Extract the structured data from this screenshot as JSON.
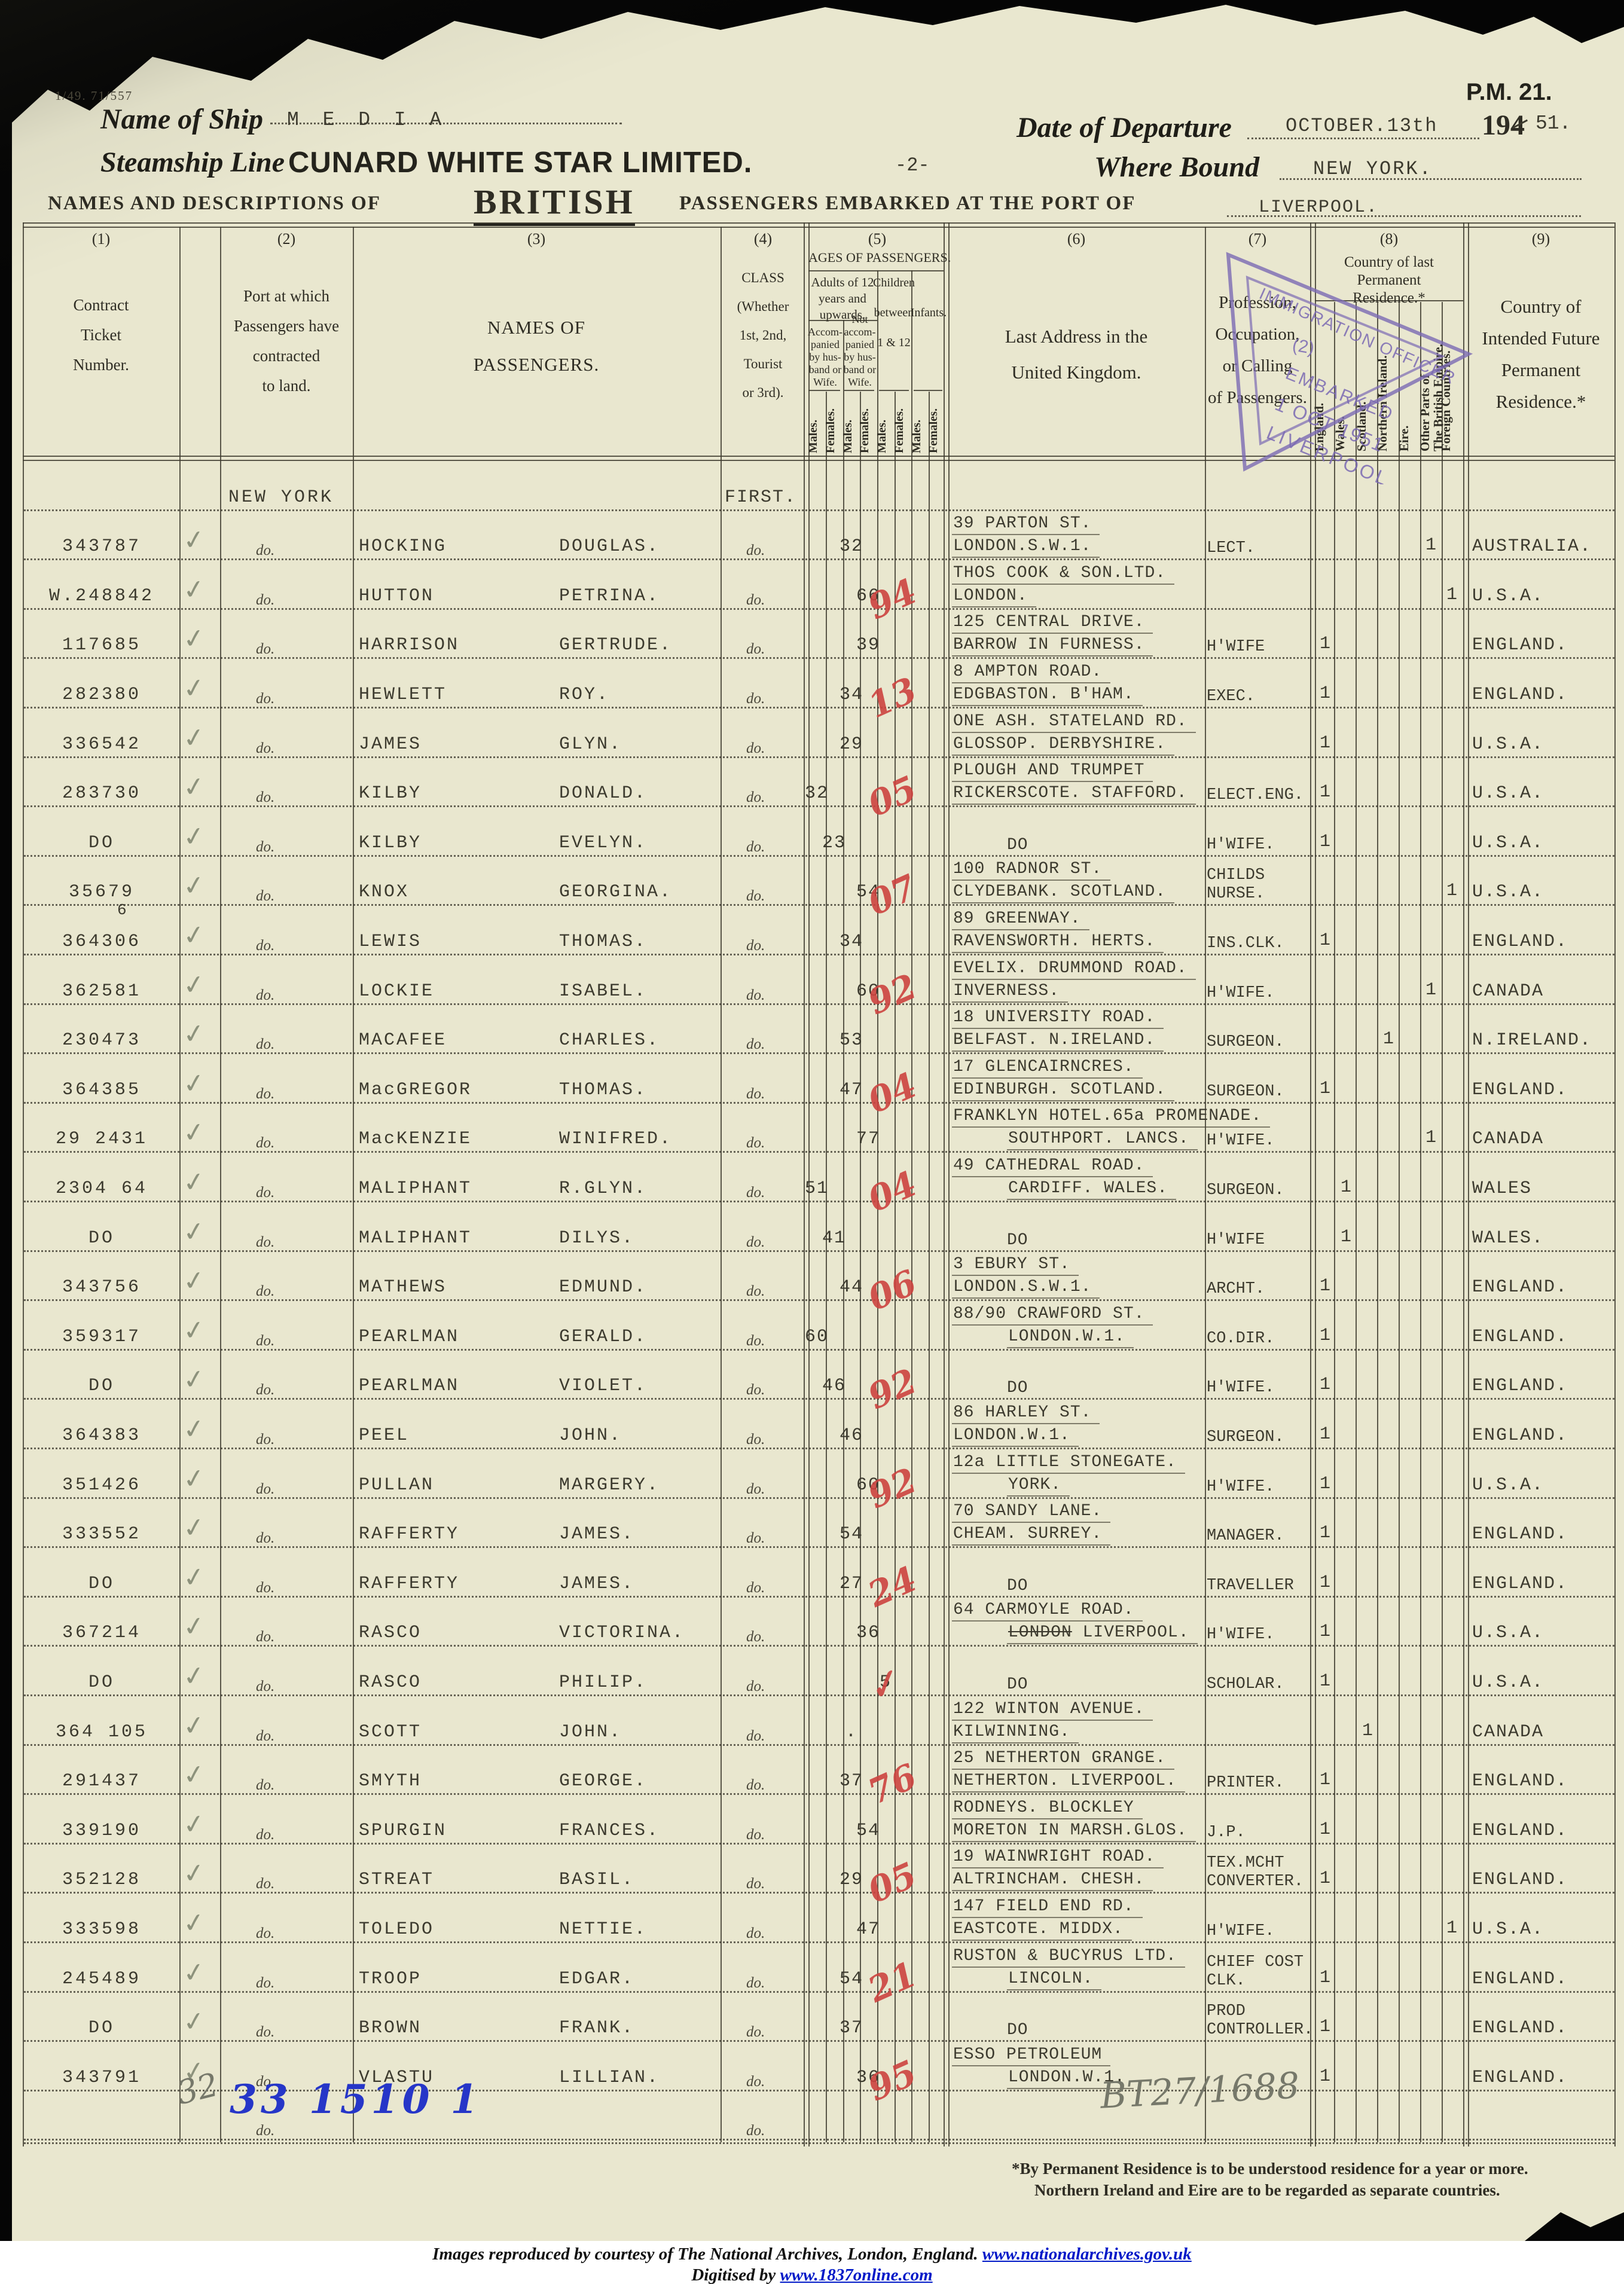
{
  "header": {
    "form_ref": "1/49. 71/557",
    "pm_ref": "P.M. 21.",
    "name_of_ship_label": "Name of Ship",
    "ship_name": "M E D I A",
    "date_label": "Date of Departure",
    "date_value": "OCTOBER.13th",
    "year_printed": "194",
    "year_typed": "51.",
    "steamship_label": "Steamship Line",
    "steamship_value": "CUNARD WHITE STAR LIMITED.",
    "page_number": "-2-",
    "where_bound_label": "Where Bound",
    "where_bound_value": "NEW YORK.",
    "title_prefix": "NAMES AND DESCRIPTIONS OF",
    "title_nationality": "BRITISH",
    "title_suffix": "PASSENGERS EMBARKED AT THE PORT OF",
    "port_value": "LIVERPOOL."
  },
  "stamp": {
    "line1": "IMMIGRATION OFFICER",
    "line2": "(2)",
    "line3": "EMBARKED",
    "line4": "1 OCT 1951",
    "line5": "LIVERPOOL"
  },
  "columns": {
    "c1": {
      "num": "(1)",
      "lines": [
        "Contract",
        "Ticket",
        "Number."
      ]
    },
    "c2": {
      "num": "(2)",
      "lines": [
        "Port at which",
        "Passengers have",
        "contracted",
        "to land."
      ]
    },
    "c3": {
      "num": "(3)",
      "lines": [
        "NAMES OF",
        "PASSENGERS."
      ]
    },
    "c4": {
      "num": "(4)",
      "lines": [
        "CLASS",
        "(Whether",
        "1st, 2nd,",
        "Tourist",
        "or 3rd)."
      ]
    },
    "c5": {
      "num": "(5)",
      "title": "AGES OF PASSENGERS.",
      "adults": [
        "Adults of 12",
        "years and",
        "upwards."
      ],
      "accompanied": [
        "Accom-",
        "panied",
        "by hus-",
        "band or",
        "Wife."
      ],
      "not_accompanied": [
        "Not",
        "accom-",
        "panied",
        "by hus-",
        "band or",
        "Wife."
      ],
      "children": [
        "Children",
        "between",
        "1 & 12"
      ],
      "infants": "Infants.",
      "males": "Males.",
      "females": "Females."
    },
    "c6": {
      "num": "(6)",
      "lines": [
        "Last Address in the",
        "United Kingdom."
      ]
    },
    "c7": {
      "num": "(7)",
      "lines": [
        "Profession,",
        "Occupation,",
        "or Calling",
        "of Passengers."
      ]
    },
    "c8": {
      "num": "(8)",
      "title": [
        "Country of last",
        "Permanent",
        "Residence.*"
      ],
      "subs": [
        "England.",
        "Wales.",
        "Scotland.",
        "Northern Ireland.",
        "Eire.",
        "Other Parts of|The British Empire.",
        "Foreign Countries."
      ]
    },
    "c9": {
      "num": "(9)",
      "lines": [
        "Country of",
        "Intended Future",
        "Permanent",
        "Residence.*"
      ]
    }
  },
  "rows": [
    {
      "kind": "group",
      "port": "NEW YORK",
      "class_value": "FIRST."
    },
    {
      "ticket": "343787",
      "surname": "HOCKING",
      "forename": "DOUGLAS.",
      "age_col": 2,
      "age": "32",
      "addr1": "39 PARTON ST.",
      "addr2": "LONDON.S.W.1.",
      "prof": [
        "LECT."
      ],
      "res_col": 5,
      "dest": "AUSTRALIA."
    },
    {
      "ticket": "W.248842",
      "surname": "HUTTON",
      "forename": "PETRINA.",
      "age_col": 3,
      "age": "66",
      "red": "94",
      "addr1": "THOS COOK & SON.LTD.",
      "addr2": "LONDON.",
      "prof": [],
      "res_col": 6,
      "dest": "U.S.A."
    },
    {
      "ticket": "117685",
      "surname": "HARRISON",
      "forename": "GERTRUDE.",
      "age_col": 3,
      "age": "39",
      "addr1": "125 CENTRAL DRIVE.",
      "addr2": "BARROW IN FURNESS.",
      "prof": [
        "H'WIFE"
      ],
      "res_col": 0,
      "dest": "ENGLAND."
    },
    {
      "ticket": "282380",
      "surname": "HEWLETT",
      "forename": "ROY.",
      "age_col": 2,
      "age": "34",
      "red": "13",
      "addr1": "8 AMPTON ROAD.",
      "addr2": "EDGBASTON. B'HAM.",
      "prof": [
        "EXEC."
      ],
      "res_col": 0,
      "dest": "ENGLAND."
    },
    {
      "ticket": "336542",
      "surname": "JAMES",
      "forename": "GLYN.",
      "age_col": 2,
      "age": "29",
      "addr1": "ONE ASH. STATELAND RD.",
      "addr2": "GLOSSOP. DERBYSHIRE.",
      "prof": [],
      "res_col": 0,
      "dest": "U.S.A."
    },
    {
      "ticket": "283730",
      "surname": "KILBY",
      "forename": "DONALD.",
      "age_col": 0,
      "age": "32",
      "red": "05",
      "addr1": "PLOUGH AND TRUMPET",
      "addr2": "RICKERSCOTE. STAFFORD.",
      "prof": [
        "ELECT.ENG."
      ],
      "res_col": 0,
      "dest": "U.S.A."
    },
    {
      "ticket": "DO",
      "surname": "KILBY",
      "forename": "EVELYN.",
      "age_col": 1,
      "age": "23",
      "addr2": "DO",
      "addr2_indent": true,
      "prof": [
        "H'WIFE."
      ],
      "res_col": 0,
      "dest": "U.S.A."
    },
    {
      "ticket": "35679",
      "ticket_sub": "6",
      "surname": "KNOX",
      "forename": "GEORGINA.",
      "age_col": 3,
      "age": "54",
      "red": "07",
      "addr1": "100 RADNOR ST.",
      "addr2": "CLYDEBANK. SCOTLAND.",
      "prof": [
        "CHILDS",
        "NURSE."
      ],
      "res_col": 6,
      "dest": "U.S.A."
    },
    {
      "ticket": "364306",
      "surname": "LEWIS",
      "forename": "THOMAS.",
      "age_col": 2,
      "age": "34",
      "addr1": "89 GREENWAY.",
      "addr2": "RAVENSWORTH. HERTS.",
      "prof": [
        "INS.CLK."
      ],
      "res_col": 0,
      "dest": "ENGLAND."
    },
    {
      "ticket": "362581",
      "surname": "LOCKIE",
      "forename": "ISABEL.",
      "age_col": 3,
      "age": "60",
      "red": "92",
      "addr1": "EVELIX. DRUMMOND ROAD.",
      "addr2": "INVERNESS.",
      "prof": [
        "H'WIFE."
      ],
      "res_col": 5,
      "dest": "CANADA"
    },
    {
      "ticket": "230473",
      "surname": "MACAFEE",
      "forename": "CHARLES.",
      "age_col": 2,
      "age": "53",
      "addr1": "18 UNIVERSITY ROAD.",
      "addr2": "BELFAST. N.IRELAND.",
      "prof": [
        "SURGEON."
      ],
      "res_col": 3,
      "dest": "N.IRELAND."
    },
    {
      "ticket": "364385",
      "surname": "MacGREGOR",
      "forename": "THOMAS.",
      "age_col": 2,
      "age": "47",
      "red": "04",
      "addr1": "17 GLENCAIRNCRES.",
      "addr2": "EDINBURGH. SCOTLAND.",
      "prof": [
        "SURGEON."
      ],
      "res_col": 0,
      "dest": "ENGLAND."
    },
    {
      "ticket": "29 2431",
      "surname": "MacKENZIE",
      "forename": "WINIFRED.",
      "age_col": 3,
      "age": "77",
      "addr1": "FRANKLYN HOTEL.65a PROMENADE.",
      "addr2": "SOUTHPORT. LANCS.",
      "addr2_indent": true,
      "prof": [
        "H'WIFE."
      ],
      "res_col": 5,
      "dest": "CANADA"
    },
    {
      "ticket": "2304 64",
      "surname": "MALIPHANT",
      "forename": "R.GLYN.",
      "age_col": 0,
      "age": "51",
      "red": "04",
      "addr1": "49 CATHEDRAL ROAD.",
      "addr2": "CARDIFF. WALES.",
      "addr2_indent": true,
      "prof": [
        "SURGEON."
      ],
      "res_col": 1,
      "dest": "WALES"
    },
    {
      "ticket": "DO",
      "surname": "MALIPHANT",
      "forename": "DILYS.",
      "age_col": 1,
      "age": "41",
      "addr2": "DO",
      "addr2_indent": true,
      "prof": [
        "H'WIFE"
      ],
      "res_col": 1,
      "dest": "WALES."
    },
    {
      "ticket": "343756",
      "surname": "MATHEWS",
      "forename": "EDMUND.",
      "age_col": 2,
      "age": "44",
      "red": "06",
      "addr1": "3 EBURY ST.",
      "addr2": "LONDON.S.W.1.",
      "prof": [
        "ARCHT."
      ],
      "res_col": 0,
      "dest": "ENGLAND."
    },
    {
      "ticket": "359317",
      "surname": "PEARLMAN",
      "forename": "GERALD.",
      "age_col": 0,
      "age": "60",
      "addr1": "88/90 CRAWFORD ST.",
      "addr2": "LONDON.W.1.",
      "addr2_indent": true,
      "prof": [
        "CO.DIR."
      ],
      "res_col": 0,
      "dest": "ENGLAND."
    },
    {
      "ticket": "DO",
      "surname": "PEARLMAN",
      "forename": "VIOLET.",
      "age_col": 1,
      "age": "46",
      "red": "92",
      "addr2": "DO",
      "addr2_indent": true,
      "prof": [
        "H'WIFE."
      ],
      "res_col": 0,
      "dest": "ENGLAND."
    },
    {
      "ticket": "364383",
      "surname": "PEEL",
      "forename": "JOHN.",
      "age_col": 2,
      "age": "46",
      "addr1": "86 HARLEY ST.",
      "addr2": "LONDON.W.1.",
      "prof": [
        "SURGEON."
      ],
      "res_col": 0,
      "dest": "ENGLAND."
    },
    {
      "ticket": "351426",
      "surname": "PULLAN",
      "forename": "MARGERY.",
      "age_col": 3,
      "age": "60",
      "red": "92",
      "addr1": "12a LITTLE STONEGATE.",
      "addr2": "YORK.",
      "addr2_indent": true,
      "prof": [
        "H'WIFE."
      ],
      "res_col": 0,
      "dest": "U.S.A."
    },
    {
      "ticket": "333552",
      "surname": "RAFFERTY",
      "forename": "JAMES.",
      "age_col": 2,
      "age": "54",
      "addr1": "70 SANDY LANE.",
      "addr2": "CHEAM. SURREY.",
      "prof": [
        "MANAGER."
      ],
      "res_col": 0,
      "dest": "ENGLAND."
    },
    {
      "ticket": "DO",
      "surname": "RAFFERTY",
      "forename": "JAMES.",
      "age_col": 2,
      "age": "27",
      "red": "24",
      "addr2": "DO",
      "addr2_indent": true,
      "prof": [
        "TRAVELLER"
      ],
      "res_col": 0,
      "dest": "ENGLAND."
    },
    {
      "ticket": "367214",
      "surname": "RASCO",
      "forename": "VICTORINA.",
      "age_col": 3,
      "age": "36",
      "addr1": "64 CARMOYLE ROAD.",
      "addr2_struck": "LONDON",
      "addr2": " LIVERPOOL.",
      "addr2_indent": true,
      "prof": [
        "H'WIFE."
      ],
      "res_col": 0,
      "dest": "U.S.A."
    },
    {
      "ticket": "DO",
      "surname": "RASCO",
      "forename": "PHILIP.",
      "age_col": 4,
      "age": "5",
      "red": "✓",
      "addr2": "DO",
      "addr2_indent": true,
      "prof": [
        "SCHOLAR."
      ],
      "res_col": 0,
      "dest": "U.S.A."
    },
    {
      "ticket": "364 105",
      "surname": "SCOTT",
      "forename": "JOHN.",
      "age_col": 2,
      "age": ".",
      "addr1": "122 WINTON AVENUE.",
      "addr2": "KILWINNING.",
      "prof": [],
      "res_col": 2,
      "dest": "CANADA"
    },
    {
      "ticket": "291437",
      "surname": "SMYTH",
      "forename": "GEORGE.",
      "age_col": 2,
      "age": "37",
      "red": "76",
      "addr1": "25 NETHERTON GRANGE.",
      "addr2": "NETHERTON. LIVERPOOL.",
      "prof": [
        "PRINTER."
      ],
      "res_col": 0,
      "dest": "ENGLAND."
    },
    {
      "ticket": "339190",
      "surname": "SPURGIN",
      "forename": "FRANCES.",
      "age_col": 3,
      "age": "54",
      "addr1": "RODNEYS. BLOCKLEY",
      "addr2": "MORETON IN MARSH.GLOS.",
      "prof": [
        "J.P."
      ],
      "res_col": 0,
      "dest": "ENGLAND."
    },
    {
      "ticket": "352128",
      "surname": "STREAT",
      "forename": "BASIL.",
      "age_col": 2,
      "age": "29",
      "red": "05",
      "addr1": "19 WAINWRIGHT ROAD.",
      "addr2": "ALTRINCHAM. CHESH.",
      "prof": [
        "TEX.MCHT",
        "CONVERTER."
      ],
      "res_col": 0,
      "dest": "ENGLAND."
    },
    {
      "ticket": "333598",
      "surname": "TOLEDO",
      "forename": "NETTIE.",
      "age_col": 3,
      "age": "47",
      "addr1": "147 FIELD END RD.",
      "addr2": "EASTCOTE. MIDDX.",
      "prof": [
        "H'WIFE."
      ],
      "res_col": 6,
      "dest": "U.S.A."
    },
    {
      "ticket": "245489",
      "surname": "TROOP",
      "forename": "EDGAR.",
      "age_col": 2,
      "age": "54",
      "red": "21",
      "addr1": "RUSTON & BUCYRUS LTD.",
      "addr2": "LINCOLN.",
      "addr2_indent": true,
      "prof": [
        "CHIEF COST",
        "CLK."
      ],
      "res_col": 0,
      "dest": "ENGLAND."
    },
    {
      "ticket": "DO",
      "surname": "BROWN",
      "forename": "FRANK.",
      "age_col": 2,
      "age": "37",
      "addr2": "DO",
      "addr2_indent": true,
      "prof": [
        "PROD",
        "CONTROLLER."
      ],
      "res_col": 0,
      "dest": "ENGLAND."
    },
    {
      "ticket": "343791",
      "surname": "VLASTU",
      "forename": "LILLIAN.",
      "age_col": 3,
      "age": "36",
      "red": "95",
      "addr1": "ESSO PETROLEUM",
      "addr2": "LONDON.W.1.",
      "addr2_indent": true,
      "prof": [],
      "res_col": 0,
      "dest": "ENGLAND."
    },
    {
      "kind": "blank"
    }
  ],
  "port_ditto": "do.",
  "class_ditto": "do.",
  "annotations": {
    "pencil_left": "32",
    "blue_ink": "33 1510 1",
    "pencil_right": "BT27/1688"
  },
  "footnote": [
    "*By Permanent Residence is to be understood residence for a year or more.",
    "Northern Ireland and Eire are to be regarded as separate countries."
  ],
  "credits": {
    "line1_prefix": "Images reproduced by courtesy of The National Archives, London, England. ",
    "line1_link": "www.nationalarchives.gov.uk",
    "line2_prefix": "Digitised by ",
    "line2_link": "www.1837online.com"
  }
}
